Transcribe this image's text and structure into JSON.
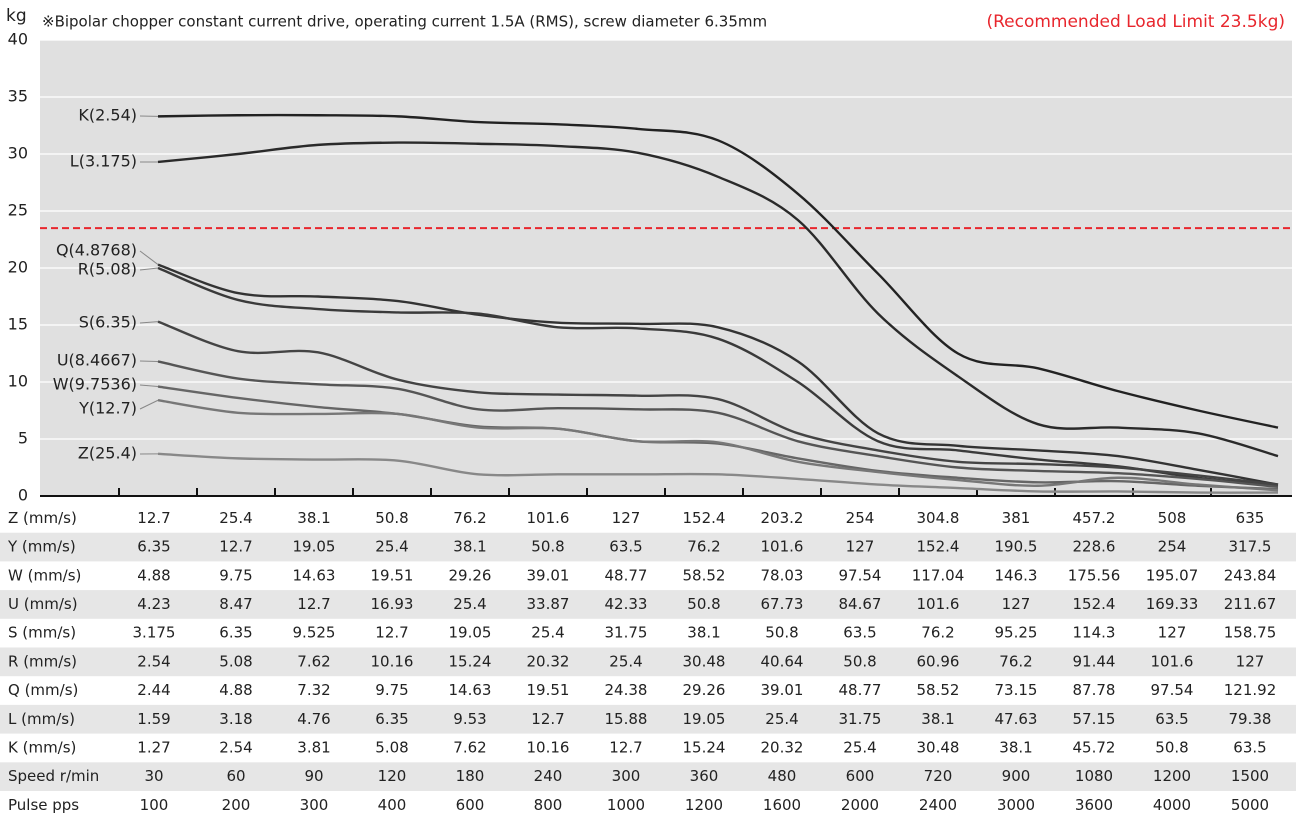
{
  "chart_data": {
    "type": "line",
    "y_label": "kg",
    "title": "※Bipolar chopper constant current drive, operating current 1.5A (RMS), screw diameter 6.35mm",
    "annotation": "(Recommended Load Limit 23.5kg)",
    "reference_line": {
      "value": 23.5,
      "color": "#e8262d"
    },
    "ylim": [
      0,
      40
    ],
    "yticks": [
      0,
      5,
      10,
      15,
      20,
      25,
      30,
      35,
      40
    ],
    "grid": true,
    "series": [
      {
        "name": "K(2.54)",
        "color": "#222222",
        "values": [
          33.3,
          33.4,
          33.4,
          33.3,
          32.8,
          32.6,
          32.2,
          31.2,
          26.5,
          19.5,
          12.5,
          11.2,
          9.2,
          7.5,
          6
        ]
      },
      {
        "name": "L(3.175)",
        "color": "#2a2a2a",
        "values": [
          29.3,
          30,
          30.8,
          31,
          30.9,
          30.7,
          30.1,
          28,
          24.2,
          16,
          10.5,
          6.3,
          6,
          5.5,
          3.5
        ]
      },
      {
        "name": "Q(4.8768)",
        "color": "#333333",
        "values": [
          20.3,
          17.8,
          17.5,
          17.1,
          15.9,
          15.2,
          15.1,
          14.8,
          11.8,
          5.5,
          4.4,
          4,
          3.5,
          2.3,
          1
        ]
      },
      {
        "name": "R(5.08)",
        "color": "#3a3a3a",
        "values": [
          20,
          17.2,
          16.4,
          16.1,
          16,
          14.8,
          14.7,
          13.8,
          10,
          4.8,
          4,
          3.2,
          2.6,
          1.6,
          0.9
        ]
      },
      {
        "name": "S(6.35)",
        "color": "#444444",
        "values": [
          15.3,
          12.7,
          12.6,
          10.2,
          9.1,
          8.9,
          8.8,
          8.5,
          5.5,
          4,
          3,
          2.8,
          2.5,
          1.8,
          1
        ]
      },
      {
        "name": "U(8.4667)",
        "color": "#555555",
        "values": [
          11.8,
          10.3,
          9.8,
          9.4,
          7.6,
          7.7,
          7.6,
          7.3,
          4.8,
          3.5,
          2.5,
          2.2,
          2,
          1.5,
          0.8
        ]
      },
      {
        "name": "W(9.7536)",
        "color": "#666666",
        "values": [
          9.6,
          8.6,
          7.8,
          7.2,
          6.1,
          5.9,
          4.8,
          4.6,
          3.3,
          2.2,
          1.6,
          1.2,
          1.3,
          0.9,
          0.6
        ]
      },
      {
        "name": "Y(12.7)",
        "color": "#777777",
        "values": [
          8.4,
          7.3,
          7.2,
          7.2,
          6,
          5.9,
          4.8,
          4.7,
          3,
          2.1,
          1.4,
          0.9,
          1.6,
          1,
          0.5
        ]
      },
      {
        "name": "Z(25.4)",
        "color": "#888888",
        "values": [
          3.7,
          3.3,
          3.2,
          3.1,
          1.9,
          1.9,
          1.9,
          1.9,
          1.5,
          1,
          0.7,
          0.4,
          0.4,
          0.3,
          0.3
        ]
      }
    ]
  },
  "table": {
    "rows": [
      {
        "label": "Z (mm/s)",
        "values": [
          12.7,
          25.4,
          38.1,
          50.8,
          76.2,
          101.6,
          127,
          152.4,
          203.2,
          254,
          304.8,
          381,
          457.2,
          508,
          635
        ]
      },
      {
        "label": "Y (mm/s)",
        "values": [
          6.35,
          12.7,
          19.05,
          25.4,
          38.1,
          50.8,
          63.5,
          76.2,
          101.6,
          127,
          152.4,
          190.5,
          228.6,
          254,
          317.5
        ]
      },
      {
        "label": "W (mm/s)",
        "values": [
          4.88,
          9.75,
          14.63,
          19.51,
          29.26,
          39.01,
          48.77,
          58.52,
          78.03,
          97.54,
          117.04,
          146.3,
          175.56,
          195.07,
          243.84
        ]
      },
      {
        "label": "U (mm/s)",
        "values": [
          4.23,
          8.47,
          12.7,
          16.93,
          25.4,
          33.87,
          42.33,
          50.8,
          67.73,
          84.67,
          101.6,
          127,
          152.4,
          169.33,
          211.67
        ]
      },
      {
        "label": "S (mm/s)",
        "values": [
          3.175,
          6.35,
          9.525,
          12.7,
          19.05,
          25.4,
          31.75,
          38.1,
          50.8,
          63.5,
          76.2,
          95.25,
          114.3,
          127,
          158.75
        ]
      },
      {
        "label": "R (mm/s)",
        "values": [
          2.54,
          5.08,
          7.62,
          10.16,
          15.24,
          20.32,
          25.4,
          30.48,
          40.64,
          50.8,
          60.96,
          76.2,
          91.44,
          101.6,
          127
        ]
      },
      {
        "label": "Q (mm/s)",
        "values": [
          2.44,
          4.88,
          7.32,
          9.75,
          14.63,
          19.51,
          24.38,
          29.26,
          39.01,
          48.77,
          58.52,
          73.15,
          87.78,
          97.54,
          121.92
        ]
      },
      {
        "label": "L (mm/s)",
        "values": [
          1.59,
          3.18,
          4.76,
          6.35,
          9.53,
          12.7,
          15.88,
          19.05,
          25.4,
          31.75,
          38.1,
          47.63,
          57.15,
          63.5,
          79.38
        ]
      },
      {
        "label": "K (mm/s)",
        "values": [
          1.27,
          2.54,
          3.81,
          5.08,
          7.62,
          10.16,
          12.7,
          15.24,
          20.32,
          25.4,
          30.48,
          38.1,
          45.72,
          50.8,
          63.5
        ]
      },
      {
        "label": "Speed r/min",
        "values": [
          30,
          60,
          90,
          120,
          180,
          240,
          300,
          360,
          480,
          600,
          720,
          900,
          1080,
          1200,
          1500
        ]
      },
      {
        "label": "Pulse pps",
        "values": [
          100,
          200,
          300,
          400,
          600,
          800,
          1000,
          1200,
          1600,
          2000,
          2400,
          3000,
          3600,
          4000,
          5000
        ]
      }
    ]
  }
}
